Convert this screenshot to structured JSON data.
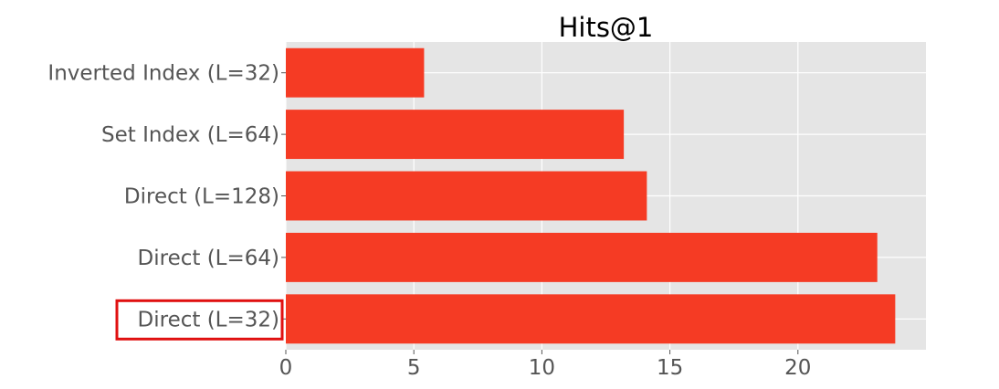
{
  "chart_data": {
    "type": "bar",
    "orientation": "horizontal",
    "title": "Hits@1",
    "xlabel": "",
    "ylabel": "",
    "categories": [
      "Inverted Index (L=32)",
      "Set Index (L=64)",
      "Direct (L=128)",
      "Direct (L=64)",
      "Direct (L=32)"
    ],
    "values": [
      5.4,
      13.2,
      14.1,
      23.1,
      23.8
    ],
    "xlim": [
      0,
      25
    ],
    "xticks": [
      0,
      5,
      10,
      15,
      20
    ],
    "grid": true,
    "bar_color": "#f53b24",
    "plot_background": "#e5e5e5",
    "highlighted_category": "Direct (L=32)",
    "highlight_color": "#e01010"
  }
}
